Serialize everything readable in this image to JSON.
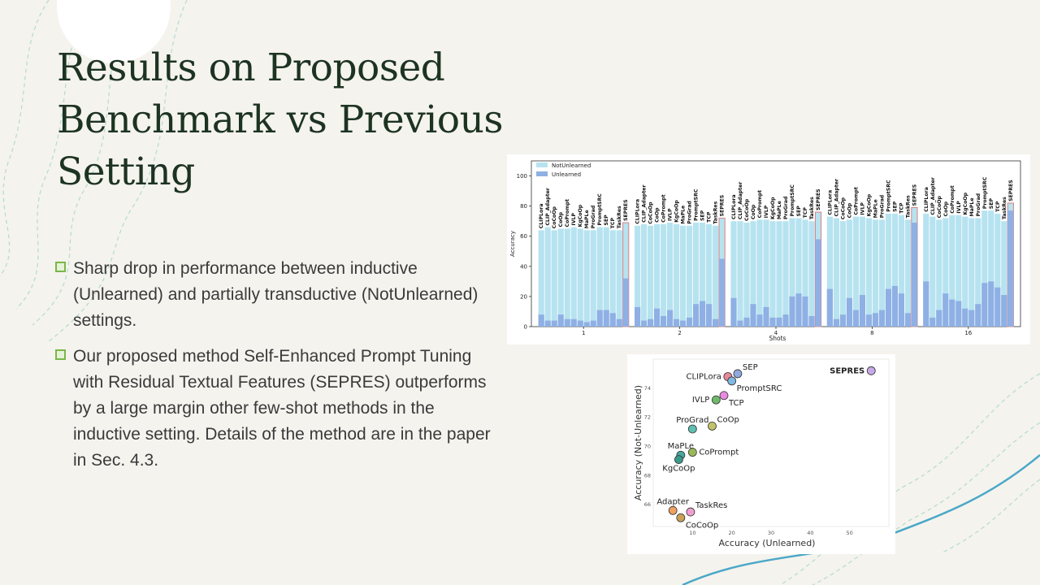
{
  "slide": {
    "title": "Results on Proposed Benchmark vs Previous Setting",
    "bullets": [
      "Sharp drop in performance between inductive (Unlearned) and partially transductive (NotUnlearned) settings.",
      "Our proposed method Self-Enhanced Prompt Tuning with Residual Textual Features (SEPRES) outperforms by a large margin other few-shot methods in the inductive setting. Details of the method are in the paper in Sec. 4.3."
    ]
  },
  "colors": {
    "title": "#1d3322",
    "bullet_mark": "#7ab648",
    "notunlearned": "#b7e3f0",
    "unlearned": "#8fb0e4",
    "highlight": "#d98080",
    "decor": "#a8d8c8"
  },
  "chart_data": [
    {
      "type": "bar",
      "stacked": "overlay",
      "xlabel": "Shots",
      "ylabel": "Accuracy",
      "ylim": [
        0,
        110
      ],
      "yticks": [
        0,
        20,
        40,
        60,
        80,
        100
      ],
      "groups": [
        "1",
        "2",
        "4",
        "8",
        "16"
      ],
      "methods": [
        "CLIPLora",
        "CLIP_Adapter",
        "CoCoOp",
        "CoOp",
        "CoPrompt",
        "IVLP",
        "KgCoOp",
        "MaPLe",
        "ProGrad",
        "PromptSRC",
        "SEP",
        "TCP",
        "TaskRes",
        "SEPRES"
      ],
      "highlight_method": "SEPRES",
      "legend": "top-left",
      "series": [
        {
          "name": "NotUnlearned",
          "values": [
            [
              64,
              66,
              64,
              65,
              65,
              66,
              65,
              64,
              64,
              66,
              66,
              64,
              64,
              69
            ],
            [
              67,
              68,
              67,
              68,
              68,
              69,
              68,
              67,
              67,
              69,
              69,
              68,
              67,
              72
            ],
            [
              70,
              70,
              69,
              70,
              71,
              71,
              70,
              70,
              70,
              72,
              72,
              71,
              70,
              76
            ],
            [
              73,
              72,
              70,
              71,
              73,
              73,
              72,
              71,
              71,
              75,
              75,
              74,
              71,
              79
            ],
            [
              75,
              73,
              71,
              72,
              74,
              74,
              73,
              72,
              72,
              77,
              77,
              75,
              70,
              82
            ]
          ]
        },
        {
          "name": "Unlearned",
          "values": [
            [
              8,
              4,
              4,
              8,
              5,
              5,
              4,
              3,
              4,
              11,
              11,
              9,
              5,
              32
            ],
            [
              13,
              4,
              5,
              12,
              7,
              11,
              5,
              4,
              6,
              15,
              17,
              15,
              5,
              45
            ],
            [
              19,
              4,
              6,
              15,
              8,
              13,
              6,
              6,
              8,
              20,
              22,
              20,
              7,
              58
            ],
            [
              25,
              5,
              8,
              19,
              11,
              21,
              8,
              9,
              11,
              25,
              27,
              22,
              9,
              69
            ],
            [
              30,
              6,
              11,
              22,
              18,
              17,
              12,
              11,
              15,
              29,
              30,
              26,
              21,
              77
            ]
          ]
        }
      ]
    },
    {
      "type": "scatter",
      "xlabel": "Accuracy (Unlearned)",
      "ylabel": "Accuracy (Not-Unlearned)",
      "xlim": [
        0,
        60
      ],
      "ylim": [
        64.5,
        76
      ],
      "xticks": [
        10,
        20,
        30,
        40,
        50
      ],
      "yticks": [
        66,
        68,
        70,
        72,
        74
      ],
      "points": [
        {
          "label": "CLIPLora",
          "x": 19,
          "y": 74.8,
          "color": "#e8899a",
          "label_pos": "left"
        },
        {
          "label": "SEP",
          "x": 21.5,
          "y": 75.0,
          "color": "#8fa8e0",
          "label_pos": "right-up"
        },
        {
          "label": "PromptSRC",
          "x": 20,
          "y": 74.5,
          "color": "#7fb8e0",
          "label_pos": "right-down"
        },
        {
          "label": "IVLP",
          "x": 16,
          "y": 73.2,
          "color": "#6fba6a",
          "label_pos": "left"
        },
        {
          "label": "TCP",
          "x": 18,
          "y": 73.5,
          "color": "#e88ae0",
          "label_pos": "right-down"
        },
        {
          "label": "ProGrad",
          "x": 10,
          "y": 71.2,
          "color": "#5fbfb0",
          "label_pos": "up"
        },
        {
          "label": "CoOp",
          "x": 15,
          "y": 71.4,
          "color": "#c2c26a",
          "label_pos": "right-up"
        },
        {
          "label": "MaPLe",
          "x": 7,
          "y": 69.4,
          "color": "#4aa8a0",
          "label_pos": "up"
        },
        {
          "label": "KgCoOp",
          "x": 6.5,
          "y": 69.1,
          "color": "#3a9a8a",
          "label_pos": "down"
        },
        {
          "label": "CoPrompt",
          "x": 10,
          "y": 69.6,
          "color": "#9ab85a",
          "label_pos": "right"
        },
        {
          "label": "Adapter",
          "x": 5,
          "y": 65.6,
          "color": "#f0a060",
          "label_pos": "up"
        },
        {
          "label": "TaskRes",
          "x": 9.5,
          "y": 65.5,
          "color": "#f0a0d0",
          "label_pos": "right-up"
        },
        {
          "label": "CoCoOp",
          "x": 7,
          "y": 65.1,
          "color": "#c8a058",
          "label_pos": "right-down"
        },
        {
          "label": "SEPRES",
          "x": 55.5,
          "y": 75.2,
          "color": "#c8a8e8",
          "label_pos": "left",
          "bold": true
        }
      ]
    }
  ]
}
